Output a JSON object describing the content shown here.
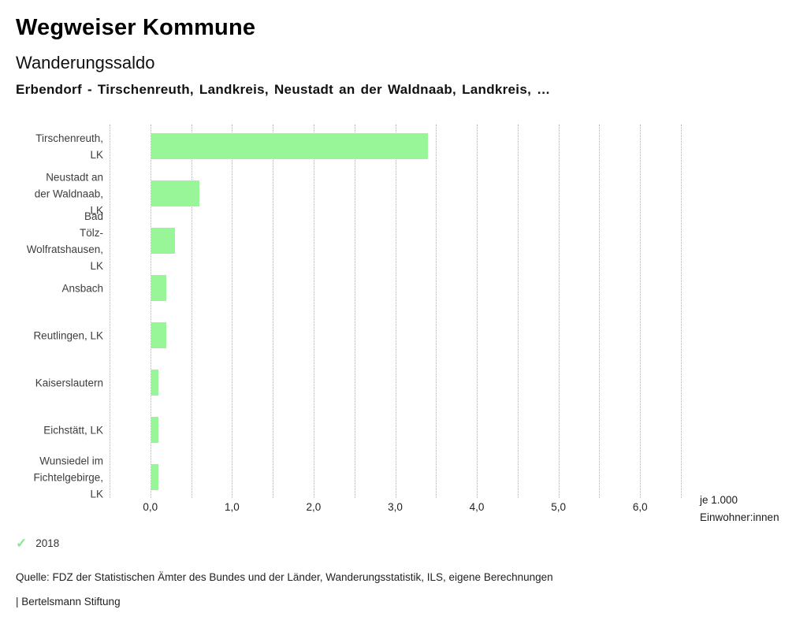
{
  "header": {
    "app_title": "Wegweiser Kommune",
    "indicator_title": "Wanderungssaldo",
    "subtitle": "Erbendorf - Tirschenreuth, Landkreis, Neustadt an der Waldnaab, Landkreis, …"
  },
  "chart_data": {
    "type": "bar",
    "orientation": "horizontal",
    "title": "Wanderungssaldo",
    "categories": [
      "Tirschenreuth, LK",
      "Neustadt an der Waldnaab, LK",
      "Bad Tölz-Wolfratshausen, LK",
      "Ansbach",
      "Reutlingen, LK",
      "Kaiserslautern",
      "Eichstätt, LK",
      "Wunsiedel im Fichtelgebirge, LK"
    ],
    "category_label_lines": [
      [
        "Tirschenreuth,",
        "LK"
      ],
      [
        "Neustadt an",
        "der Waldnaab,",
        "LK"
      ],
      [
        "Bad",
        "Tölz-",
        "Wolfratshausen,",
        "LK"
      ],
      [
        "Ansbach"
      ],
      [
        "Reutlingen, LK"
      ],
      [
        "Kaiserslautern"
      ],
      [
        "Eichstätt, LK"
      ],
      [
        "Wunsiedel im",
        "Fichtelgebirge,",
        "LK"
      ]
    ],
    "series": [
      {
        "name": "2018",
        "values": [
          3.4,
          0.6,
          0.3,
          0.2,
          0.2,
          0.1,
          0.1,
          0.1
        ]
      }
    ],
    "xlim": [
      -0.5,
      6.5
    ],
    "grid_interval": 0.5,
    "grid": "vertical dotted gridlines every 0.5, no axis lines",
    "x_tick_values": [
      0,
      1,
      2,
      3,
      4,
      5,
      6
    ],
    "x_tick_labels": [
      "0,0",
      "1,0",
      "2,0",
      "3,0",
      "4,0",
      "5,0",
      "6,0"
    ],
    "xlabel": "je 1.000 Einwohner:innen",
    "xlabel_lines": [
      "je 1.000",
      "Einwohner:innen"
    ],
    "bar_color": "#98f598",
    "gridline_color": "#b3b3b3",
    "legend_position": "bottom-left"
  },
  "legend": {
    "check_icon": "✓",
    "check_color": "#8ee690",
    "year": "2018"
  },
  "footer": {
    "source": "Quelle: FDZ der Statistischen Ämter des Bundes und der Länder, Wanderungsstatistik, ILS, eigene Berechnungen",
    "attribution": "| Bertelsmann Stiftung"
  }
}
